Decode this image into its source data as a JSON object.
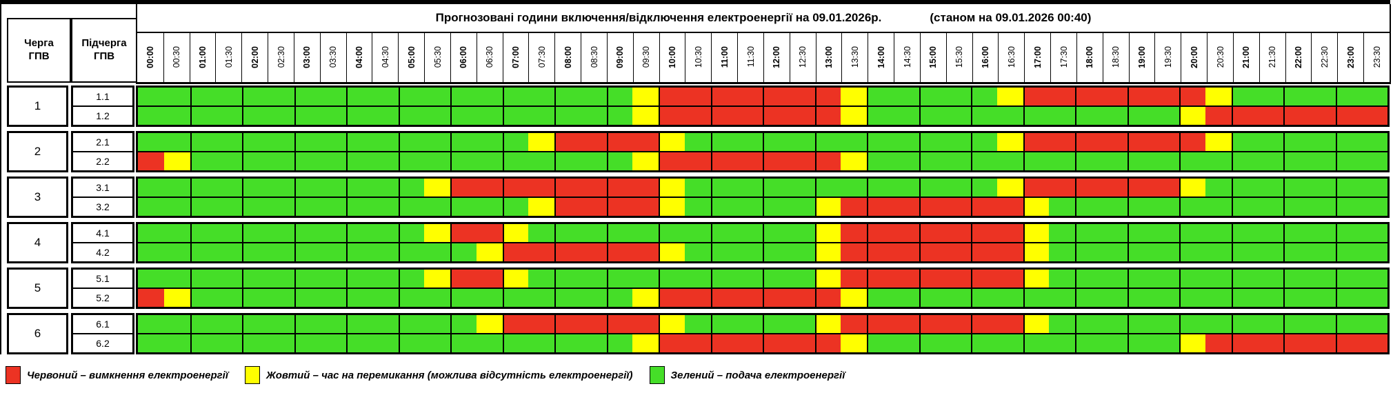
{
  "header": {
    "queue_line1": "Черга",
    "queue_line2": "ГПВ",
    "subqueue_line1": "Підчерга",
    "subqueue_line2": "ГПВ",
    "title": "Прогнозовані години включення/відключення електроенергії на 09.01.2026р.",
    "title_note": "(станом на 09.01.2026 00:40)"
  },
  "times": [
    "00:00",
    "00:30",
    "01:00",
    "01:30",
    "02:00",
    "02:30",
    "03:00",
    "03:30",
    "04:00",
    "04:30",
    "05:00",
    "05:30",
    "06:00",
    "06:30",
    "07:00",
    "07:30",
    "08:00",
    "08:30",
    "09:00",
    "09:30",
    "10:00",
    "10:30",
    "11:00",
    "11:30",
    "12:00",
    "12:30",
    "13:00",
    "13:30",
    "14:00",
    "14:30",
    "15:00",
    "15:30",
    "16:00",
    "16:30",
    "17:00",
    "17:30",
    "18:00",
    "18:30",
    "19:00",
    "19:30",
    "20:00",
    "20:30",
    "21:00",
    "21:30",
    "22:00",
    "22:30",
    "23:00",
    "23:30"
  ],
  "colors": {
    "G": "#45DE28",
    "Y": "#FFFF00",
    "R": "#EC3323"
  },
  "groups": [
    {
      "queue": "1",
      "rows": [
        {
          "label": "1.1",
          "pattern": "GGGGGGGGGGGGGGGGGGGYRRRRRRRYGGGGGYRRRRRRRYGGGGGG"
        },
        {
          "label": "1.2",
          "pattern": "GGGGGGGGGGGGGGGGGGGYRRRRRRRYGGGGGGGGGGGGYRRRRRRR"
        }
      ]
    },
    {
      "queue": "2",
      "rows": [
        {
          "label": "2.1",
          "pattern": "GGGGGGGGGGGGGGGYRRRRYGGGGGGGGGGGGYRRRRRRRYGGGGGG"
        },
        {
          "label": "2.2",
          "pattern": "RYGGGGGGGGGGGGGGGGGYRRRRRRRYGGGGGGGGGGGGGGGGGGGG"
        }
      ]
    },
    {
      "queue": "3",
      "rows": [
        {
          "label": "3.1",
          "pattern": "GGGGGGGGGGGYRRRRRRRRYGGGGGGGGGGGGYRRRRRRYGGGGGGG"
        },
        {
          "label": "3.2",
          "pattern": "GGGGGGGGGGGGGGGYRRRRYGGGGGYRRRRRRRYGGGGGGGGGGGGG"
        }
      ]
    },
    {
      "queue": "4",
      "rows": [
        {
          "label": "4.1",
          "pattern": "GGGGGGGGGGGYRRYGGGGGGGGGGGYRRRRRRRYGGGGGGGGGGGGG"
        },
        {
          "label": "4.2",
          "pattern": "GGGGGGGGGGGGGYRRRRRRYGGGGGYRRRRRRRYGGGGGGGGGGGGG"
        }
      ]
    },
    {
      "queue": "5",
      "rows": [
        {
          "label": "5.1",
          "pattern": "GGGGGGGGGGGYRRYGGGGGGGGGGGYRRRRRRRYGGGGGGGGGGGGG"
        },
        {
          "label": "5.2",
          "pattern": "RYGGGGGGGGGGGGGGGGGYRRRRRRRYGGGGGGGGGGGGGGGGGGGG"
        }
      ]
    },
    {
      "queue": "6",
      "rows": [
        {
          "label": "6.1",
          "pattern": "GGGGGGGGGGGGGYRRRRRRYGGGGGYRRRRRRRYGGGGGGGGGGGGG"
        },
        {
          "label": "6.2",
          "pattern": "GGGGGGGGGGGGGGGGGGGYRRRRRRRYGGGGGGGGGGGGYRRRRRRR"
        }
      ]
    }
  ],
  "legend": [
    {
      "color": "#EC3323",
      "label": "Червоний – вимкнення електроенергії"
    },
    {
      "color": "#FFFF00",
      "label": "Жовтий – час на перемикання (можлива відсутність електроенергії)"
    },
    {
      "color": "#45DE28",
      "label": "Зелений – подача електроенергії"
    }
  ]
}
